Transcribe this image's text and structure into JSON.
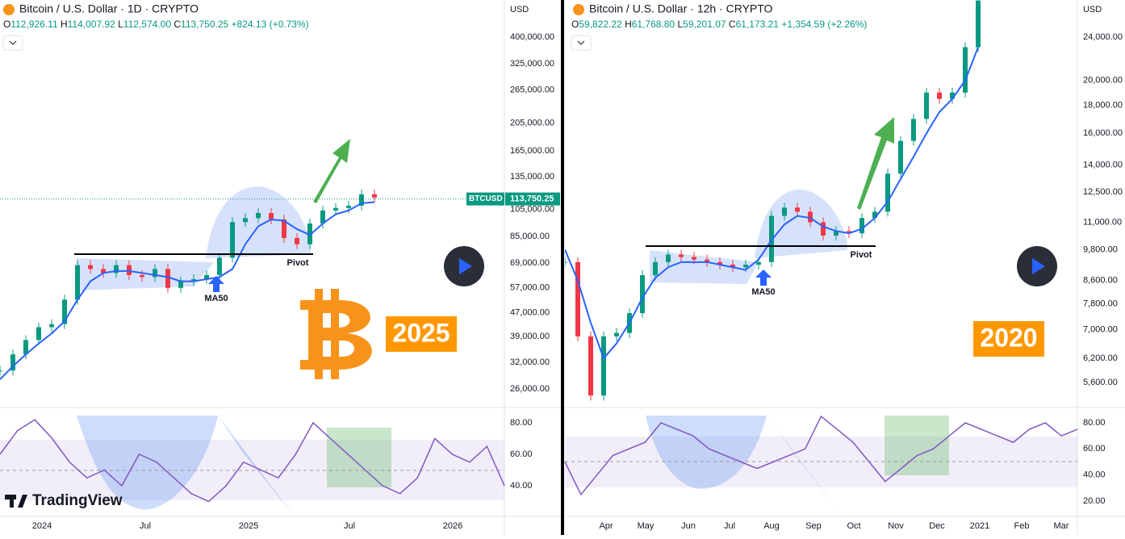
{
  "panels": [
    {
      "header": {
        "title": "Bitcoin / U.S. Dollar · 1D · CRYPTO",
        "ohlc": [
          {
            "label": "O",
            "value": "112,926.11"
          },
          {
            "label": "H",
            "value": "114,007.92"
          },
          {
            "label": "L",
            "value": "112,574.00"
          },
          {
            "label": "C",
            "value": "113,750.25"
          }
        ],
        "change": "+824.13 (+0.73%)"
      },
      "price_unit": "USD",
      "price_ticks": [
        "400,000.00",
        "325,000.00",
        "265,000.00",
        "205,000.00",
        "165,000.00",
        "135,000.00",
        "105,000.00",
        "85,000.00",
        "69,000.00",
        "57,000.00",
        "47,000.00",
        "39,000.00",
        "32,000.00",
        "26,000.00"
      ],
      "last_price": {
        "symbol": "BTCUSD",
        "price": "113,750.25"
      },
      "rsi_ticks": [
        "80.00",
        "60.00",
        "40.00"
      ],
      "time_labels": [
        "2024",
        "Jul",
        "2025",
        "Jul",
        "2026"
      ],
      "annotations": {
        "pivot": "Pivot",
        "ma": "MA50",
        "year": "2025"
      },
      "closes": [
        30000,
        34000,
        38000,
        42000,
        43000,
        52000,
        68000,
        66000,
        64000,
        68000,
        63000,
        62000,
        66000,
        57000,
        60000,
        61000,
        63000,
        72000,
        95000,
        98000,
        102000,
        97000,
        84000,
        80000,
        94000,
        104000,
        106000,
        108000,
        118000,
        115000
      ],
      "ma50": [
        28000,
        31000,
        34000,
        37000,
        40000,
        44000,
        52000,
        60000,
        64000,
        65000,
        65000,
        64000,
        63000,
        62000,
        60000,
        60000,
        61000,
        62000,
        66000,
        80000,
        92000,
        97000,
        96000,
        90000,
        86000,
        94000,
        101000,
        104000,
        110000,
        111000
      ],
      "rsi": [
        60,
        75,
        82,
        70,
        55,
        45,
        50,
        40,
        60,
        55,
        45,
        35,
        30,
        40,
        55,
        50,
        45,
        60,
        80,
        70,
        60,
        50,
        40,
        35,
        45,
        70,
        60,
        55,
        65,
        40
      ]
    },
    {
      "header": {
        "title": "Bitcoin / U.S. Dollar · 12h · CRYPTO",
        "ohlc": [
          {
            "label": "O",
            "value": "59,822.22"
          },
          {
            "label": "H",
            "value": "61,768.80"
          },
          {
            "label": "L",
            "value": "59,201.07"
          },
          {
            "label": "C",
            "value": "61,173.21"
          }
        ],
        "change": "+1,354.59 (+2.26%)"
      },
      "price_unit": "USD",
      "price_ticks": [
        "24,000.00",
        "20,000.00",
        "18,000.00",
        "16,000.00",
        "14,000.00",
        "12,500.00",
        "11,000.00",
        "9,800.00",
        "8,600.00",
        "7,800.00",
        "7,000.00",
        "6,200.00",
        "5,600.00"
      ],
      "rsi_ticks": [
        "80.00",
        "60.00",
        "40.00",
        "20.00"
      ],
      "time_labels": [
        "Apr",
        "May",
        "Jun",
        "Jul",
        "Aug",
        "Sep",
        "Oct",
        "Nov",
        "Dec",
        "2021",
        "Feb",
        "Mar"
      ],
      "annotations": {
        "pivot": "Pivot",
        "ma": "MA50",
        "year": "2020"
      },
      "closes": [
        9300,
        6800,
        5300,
        6800,
        6900,
        7500,
        8800,
        9300,
        9600,
        9500,
        9400,
        9300,
        9200,
        9100,
        9200,
        9300,
        11300,
        11700,
        11500,
        11000,
        10400,
        10600,
        10500,
        11200,
        11500,
        13500,
        15500,
        17000,
        19000,
        18500,
        19000,
        23000,
        28000
      ],
      "ma50": [
        9800,
        8600,
        7200,
        6200,
        6600,
        7200,
        8000,
        8700,
        9100,
        9300,
        9300,
        9300,
        9200,
        9100,
        9000,
        9400,
        10200,
        10900,
        11300,
        11200,
        10800,
        10600,
        10500,
        10700,
        11200,
        12000,
        13200,
        14500,
        16000,
        17500,
        18500,
        20000,
        23000
      ],
      "rsi": [
        50,
        25,
        40,
        55,
        60,
        65,
        80,
        75,
        70,
        60,
        55,
        50,
        45,
        50,
        55,
        60,
        85,
        75,
        65,
        50,
        35,
        45,
        55,
        60,
        70,
        80,
        75,
        70,
        65,
        75,
        80,
        70,
        75
      ]
    }
  ],
  "brand": "TradingView"
}
